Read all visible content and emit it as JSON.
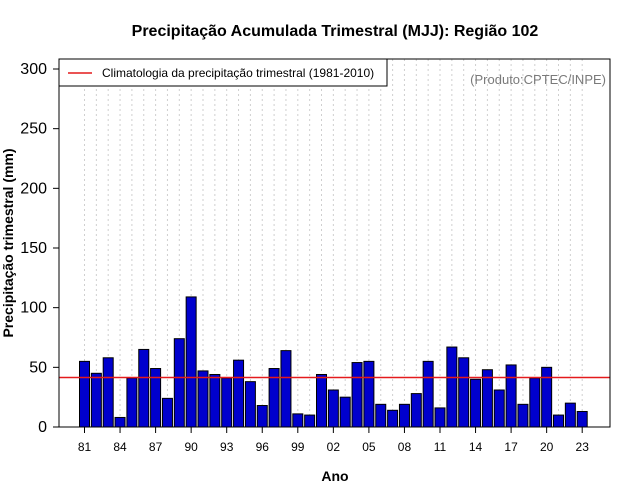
{
  "chart_data": {
    "type": "bar",
    "title": "Precipitação Acumulada Trimestral (MJJ): Região 102",
    "xlabel": "Ano",
    "ylabel": "Precipitação trimestral (mm)",
    "ylim": [
      0,
      300
    ],
    "yticks": [
      0,
      50,
      100,
      150,
      200,
      250,
      300
    ],
    "xtick_labels": [
      {
        "year": 1981,
        "label": "81"
      },
      {
        "year": 1984,
        "label": "84"
      },
      {
        "year": 1987,
        "label": "87"
      },
      {
        "year": 1990,
        "label": "90"
      },
      {
        "year": 1993,
        "label": "93"
      },
      {
        "year": 1996,
        "label": "96"
      },
      {
        "year": 1999,
        "label": "99"
      },
      {
        "year": 2002,
        "label": "02"
      },
      {
        "year": 2005,
        "label": "05"
      },
      {
        "year": 2008,
        "label": "08"
      },
      {
        "year": 2011,
        "label": "11"
      },
      {
        "year": 2014,
        "label": "14"
      },
      {
        "year": 2017,
        "label": "17"
      },
      {
        "year": 2020,
        "label": "20"
      },
      {
        "year": 2023,
        "label": "23"
      }
    ],
    "categories": [
      1981,
      1982,
      1983,
      1984,
      1985,
      1986,
      1987,
      1988,
      1989,
      1990,
      1991,
      1992,
      1993,
      1994,
      1995,
      1996,
      1997,
      1998,
      1999,
      2000,
      2001,
      2002,
      2003,
      2004,
      2005,
      2006,
      2007,
      2008,
      2009,
      2010,
      2011,
      2012,
      2013,
      2014,
      2015,
      2016,
      2017,
      2018,
      2019,
      2020,
      2021,
      2022,
      2023
    ],
    "series": [
      {
        "name": "Precipitação trimestral",
        "color": "#0000cd",
        "values": [
          55,
          45,
          58,
          8,
          41,
          65,
          49,
          24,
          74,
          109,
          47,
          44,
          41,
          56,
          38,
          18,
          49,
          64,
          11,
          10,
          44,
          31,
          25,
          54,
          55,
          19,
          14,
          19,
          28,
          55,
          16,
          67,
          58,
          40,
          48,
          31,
          52,
          19,
          41,
          50,
          10,
          20,
          13
        ]
      }
    ],
    "climatology": {
      "label": "Climatologia da precipitação trimestral (1981-2010)",
      "value": 41.5,
      "color": "#e41a1c"
    },
    "legend_position": "top-left",
    "grid": "vertical-dotted",
    "credit": "(Produto:CPTEC/INPE)"
  }
}
